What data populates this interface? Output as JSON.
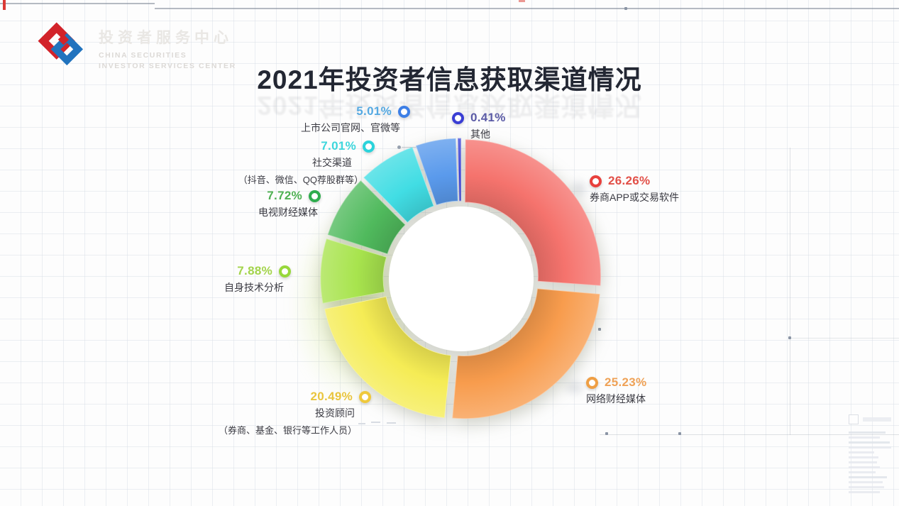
{
  "header": {
    "logo": {
      "title": "投资者服务中心",
      "subtitle_line1": "CHINA SECURITIES",
      "subtitle_line2": "INVESTOR SERVICES CENTER",
      "brand_red": "#D2232A",
      "brand_blue": "#2173BE"
    },
    "title": "2021年投资者信息获取渠道情况"
  },
  "chart_data": {
    "type": "pie",
    "donut": true,
    "title": "2021年投资者信息获取渠道情况",
    "unit": "%",
    "start_angle_deg": 0,
    "direction": "clockwise",
    "slices": [
      {
        "pct_label": "26.26%",
        "name": "券商APP或交易软件",
        "sub": "",
        "value": 26.26,
        "color": "#F5736D",
        "ring_color": "#E8403C",
        "text_color": "#E25048"
      },
      {
        "pct_label": "25.23%",
        "name": "网络财经媒体",
        "sub": "",
        "value": 25.23,
        "color": "#F89C4D",
        "ring_color": "#EF9F45",
        "text_color": "#EFA257"
      },
      {
        "pct_label": "20.49%",
        "name": "投资顾问",
        "sub": "（券商、基金、银行等工作人员）",
        "value": 20.49,
        "color": "#F5EC55",
        "ring_color": "#EFC93C",
        "text_color": "#E9C53E"
      },
      {
        "pct_label": "7.88%",
        "name": "自身技术分析",
        "sub": "",
        "value": 7.88,
        "color": "#A8E44E",
        "ring_color": "#97D83B",
        "text_color": "#A3D44B"
      },
      {
        "pct_label": "7.72%",
        "name": "电视财经媒体",
        "sub": "",
        "value": 7.72,
        "color": "#50BA5D",
        "ring_color": "#2FAC4E",
        "text_color": "#4FB153"
      },
      {
        "pct_label": "7.01%",
        "name": "社交渠道",
        "sub": "（抖音、微信、QQ荐股群等）",
        "value": 7.01,
        "color": "#41DDE4",
        "ring_color": "#2BD3DB",
        "text_color": "#3DD6DC"
      },
      {
        "pct_label": "5.01%",
        "name": "上市公司官网、官微等",
        "sub": "",
        "value": 5.01,
        "color": "#5A9AEC",
        "ring_color": "#3D7FE6",
        "text_color": "#55A9E2"
      },
      {
        "pct_label": "0.41%",
        "name": "其他",
        "sub": "",
        "value": 0.41,
        "color": "#3C42D3",
        "ring_color": "#3A3ED4",
        "text_color": "#5B5BA6"
      }
    ]
  }
}
